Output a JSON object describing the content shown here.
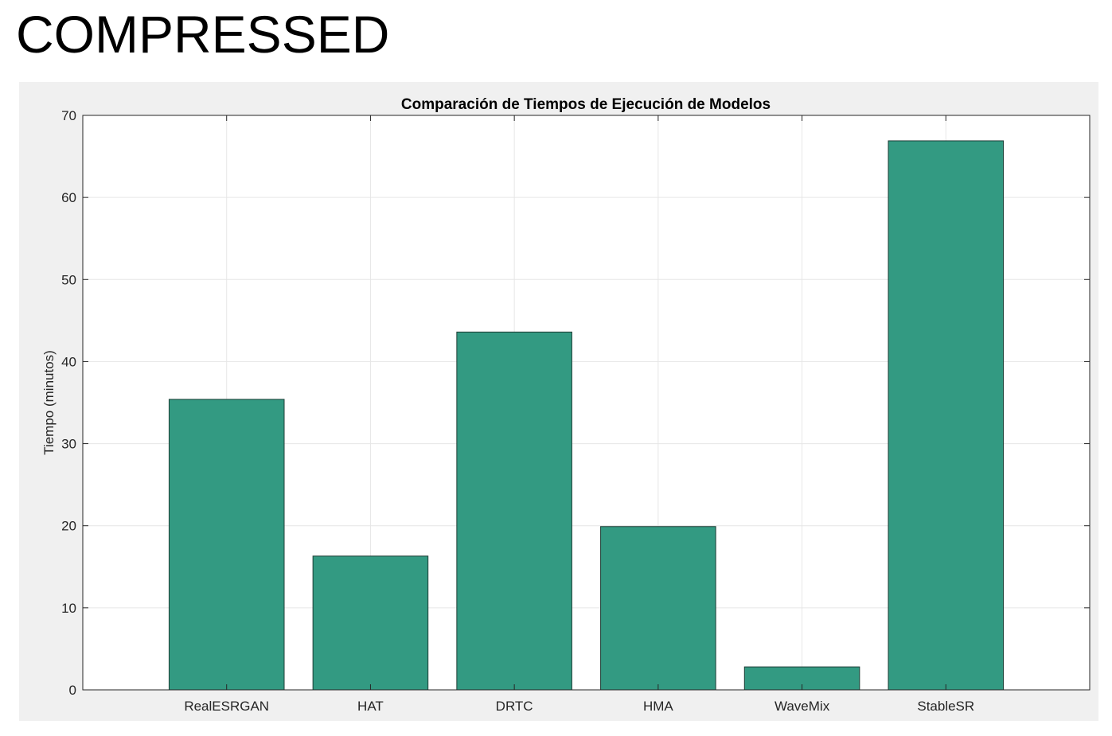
{
  "page": {
    "heading": "COMPRESSED"
  },
  "chart_data": {
    "type": "bar",
    "title": "Comparación de Tiempos de Ejecución de Modelos",
    "xlabel": "",
    "ylabel": "Tiempo (minutos)",
    "categories": [
      "RealESRGAN",
      "HAT",
      "DRTC",
      "HMA",
      "WaveMix",
      "StableSR"
    ],
    "values": [
      35.4,
      16.3,
      43.6,
      19.9,
      2.8,
      66.9
    ],
    "ylim": [
      0,
      70
    ],
    "yticks": [
      0,
      10,
      20,
      30,
      40,
      50,
      60,
      70
    ],
    "xlim": [
      0,
      7
    ],
    "grid": true,
    "bar_color": "#339A82",
    "bar_edge_color": "#1e3d35",
    "panel_color": "#f0f0f0",
    "axes_color": "#ffffff"
  }
}
